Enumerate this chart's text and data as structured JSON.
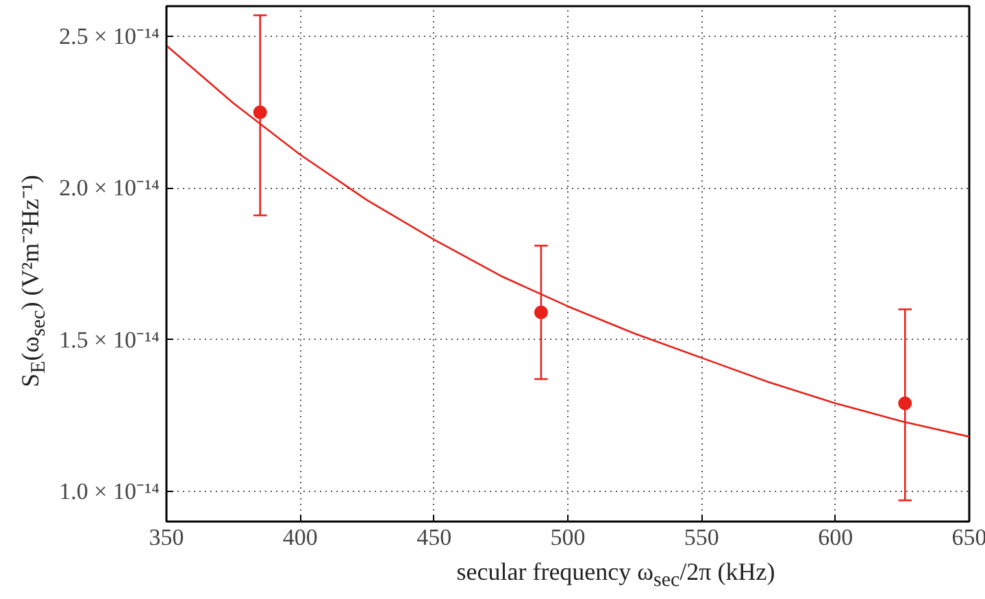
{
  "chart_data": {
    "type": "scatter",
    "xlabel": "secular frequency ω$_{sec}$/2π (kHz)",
    "ylabel": "S$_{E}$(ω$_{sec}$) (V²m⁻²Hz⁻¹)",
    "xlim": [
      350,
      650
    ],
    "ylim": [
      9e-15,
      2.6e-14
    ],
    "xticks": [
      350,
      400,
      450,
      500,
      550,
      600,
      650
    ],
    "yticks": [
      {
        "value": 1e-14,
        "label": "1.0 × 10⁻¹⁴"
      },
      {
        "value": 1.5e-14,
        "label": "1.5 × 10⁻¹⁴"
      },
      {
        "value": 2e-14,
        "label": "2.0 × 10⁻¹⁴"
      },
      {
        "value": 2.5e-14,
        "label": "2.5 × 10⁻¹⁴"
      }
    ],
    "grid": true,
    "series": [
      {
        "color": "#e8221b",
        "marker": "circle",
        "x": [
          385,
          490,
          626
        ],
        "values": [
          2.25e-14,
          1.59e-14,
          1.29e-14
        ],
        "errors": [
          [
            1.91e-14,
            2.57e-14
          ],
          [
            1.37e-14,
            1.81e-14
          ],
          [
            9.7e-15,
            1.6e-14
          ]
        ]
      },
      {
        "type": "line",
        "color": "#e8221b",
        "line_style": "solid",
        "x": [
          350,
          375,
          400,
          425,
          450,
          475,
          500,
          525,
          550,
          575,
          600,
          625,
          650
        ],
        "values": [
          2.47e-14,
          2.28e-14,
          2.11e-14,
          1.96e-14,
          1.83e-14,
          1.71e-14,
          1.61e-14,
          1.52e-14,
          1.44e-14,
          1.36e-14,
          1.29e-14,
          1.23e-14,
          1.18e-14
        ]
      }
    ]
  }
}
